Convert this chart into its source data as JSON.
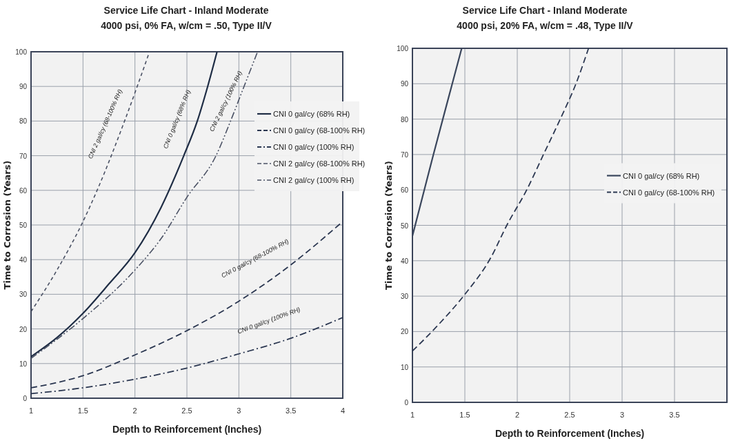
{
  "chart_data": [
    {
      "type": "line",
      "title": "Service Life Chart - Inland Moderate",
      "subtitle": "4000 psi, 0% FA, w/cm = .50, Type II/V",
      "xlabel": "Depth to Reinforcement (Inches)",
      "ylabel": "Time to Corrosion (Years)",
      "xlim": [
        1,
        4
      ],
      "ylim": [
        0,
        100
      ],
      "xticks": [
        1,
        1.5,
        2,
        2.5,
        3,
        3.5,
        4
      ],
      "yticks": [
        0,
        10,
        20,
        30,
        40,
        50,
        60,
        70,
        80,
        90,
        100
      ],
      "grid": true,
      "legend": "top right",
      "series": [
        {
          "name": "CNI 0 gal/cy (68% RH)",
          "color": "#1f2d45",
          "line_style": "solid",
          "x": [
            1,
            1.25,
            1.5,
            1.75,
            2,
            2.25,
            2.47,
            2.6,
            2.7,
            2.79
          ],
          "values": [
            12,
            17.5,
            24.5,
            33,
            42,
            55,
            70,
            80,
            90,
            100
          ]
        },
        {
          "name": "CNI 0 gal/cy (68-100% RH)",
          "color": "#2a3650",
          "line_style": "dashed",
          "x": [
            1,
            1.5,
            2,
            2.5,
            3,
            3.5,
            4
          ],
          "values": [
            3,
            6.5,
            12.5,
            19.5,
            28,
            38.5,
            51
          ]
        },
        {
          "name": "CNI 0 gal/cy (100% RH)",
          "color": "#2a3650",
          "line_style": "dashdot",
          "x": [
            1,
            1.5,
            2,
            2.5,
            3,
            3.5,
            4
          ],
          "values": [
            1.3,
            3,
            5.5,
            8.7,
            12.8,
            17.3,
            23.3
          ]
        },
        {
          "name": "CNI 2 gal/cy (68-100% RH)",
          "color": "#4a5164",
          "line_style": "shortdash",
          "x": [
            1,
            1.25,
            1.5,
            1.65,
            1.9,
            2.14
          ],
          "values": [
            25,
            37,
            51,
            61,
            80,
            100
          ]
        },
        {
          "name": "CNI 2 gal/cy (100% RH)",
          "color": "#4a5164",
          "line_style": "dashdotdot",
          "x": [
            1,
            1.5,
            2,
            2.25,
            2.5,
            2.78,
            2.92,
            3.05,
            3.18
          ],
          "values": [
            11.5,
            23,
            37,
            46,
            58,
            70,
            80,
            90,
            100
          ]
        }
      ],
      "annotations": [
        "CNI 2 gal/cy (68-100% RH)",
        "CNI 0 gal/cy (68% RH)",
        "CNI 2 gal/cy (100% RH)",
        "CNI 0 gal/cy (68-100% RH)",
        "CNI 0 gal/cy (100% RH)"
      ]
    },
    {
      "type": "line",
      "title": "Service Life Chart - Inland Moderate",
      "subtitle": "4000 psi, 20% FA, w/cm = .48, Type II/V",
      "xlabel": "Depth to Reinforcement (Inches)",
      "ylabel": "Time to Corrosion (Years)",
      "xlim": [
        1,
        4
      ],
      "ylim": [
        0,
        100
      ],
      "xticks": [
        1,
        1.5,
        2,
        2.5,
        3,
        3.5
      ],
      "yticks": [
        0,
        10,
        20,
        30,
        40,
        50,
        60,
        70,
        80,
        90,
        100
      ],
      "grid": true,
      "legend": "right",
      "series": [
        {
          "name": "CNI 0 gal/cy (68% RH)",
          "color": "#3a465c",
          "line_style": "solid",
          "x": [
            1,
            1.2,
            1.38,
            1.47
          ],
          "values": [
            47,
            70,
            90,
            100
          ]
        },
        {
          "name": "CNI 0 gal/cy (68-100% RH)",
          "color": "#2a3650",
          "line_style": "dashed",
          "x": [
            1,
            1.25,
            1.5,
            1.75,
            1.9,
            2.09,
            2.25,
            2.41,
            2.56,
            2.68
          ],
          "values": [
            14.5,
            22,
            30.5,
            41,
            50,
            60,
            70,
            80,
            90,
            100
          ]
        }
      ]
    }
  ]
}
